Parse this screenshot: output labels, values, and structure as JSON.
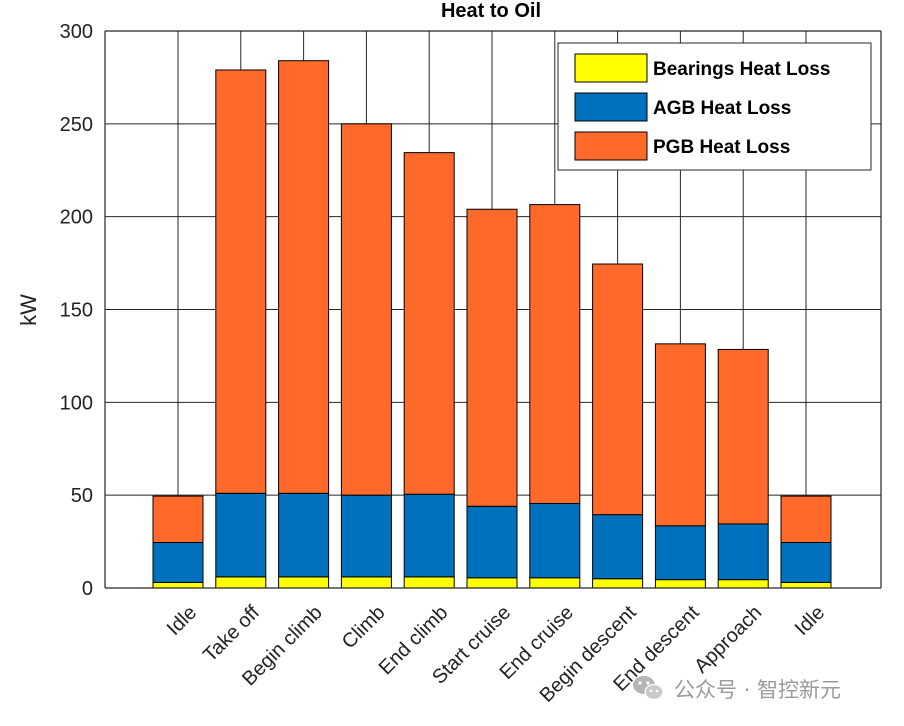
{
  "chart_data": {
    "type": "bar",
    "stacked": true,
    "title": "Heat to Oil",
    "xlabel": "",
    "ylabel": "kW",
    "ylim": [
      0,
      300
    ],
    "yticks": [
      0,
      50,
      100,
      150,
      200,
      250,
      300
    ],
    "grid": true,
    "legend_position": "top-right",
    "categories": [
      "Idle",
      "Take off",
      "Begin climb",
      "Climb",
      "End climb",
      "Start cruise",
      "End cruise",
      "Begin descent",
      "End descent",
      "Approach",
      "Idle"
    ],
    "series": [
      {
        "name": "Bearings Heat Loss",
        "color": "#ffff00",
        "values": [
          3,
          6,
          6,
          6,
          6,
          5.5,
          5.5,
          5,
          4.5,
          4.5,
          3
        ]
      },
      {
        "name": "AGB Heat Loss",
        "color": "#0072bd",
        "values": [
          21.5,
          45,
          45,
          44,
          44.5,
          38.5,
          40,
          34.5,
          29,
          30,
          21.5
        ]
      },
      {
        "name": "PGB Heat Loss",
        "color": "#ff6929",
        "values": [
          25,
          228,
          233,
          200,
          184,
          160,
          161,
          135,
          98,
          94,
          25
        ]
      }
    ]
  },
  "watermark": {
    "icon": "wechat-icon",
    "text": "公众号 · 智控新元"
  }
}
